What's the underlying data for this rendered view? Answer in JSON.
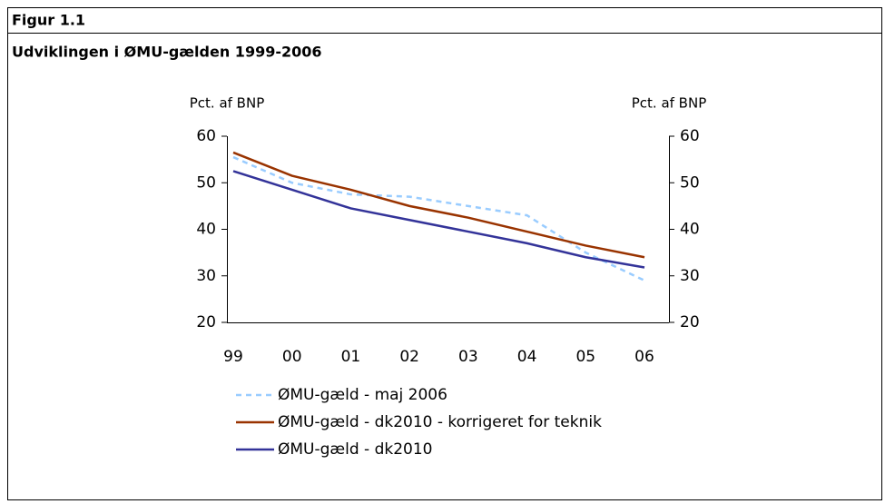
{
  "figure_label": "Figur 1.1",
  "chart_data": {
    "type": "line",
    "title": "Udviklingen i ØMU-gælden 1999-2006",
    "y_label": "Pct. af BNP",
    "y2_label": "Pct. af BNP",
    "categories": [
      "99",
      "00",
      "01",
      "02",
      "03",
      "04",
      "05",
      "06"
    ],
    "series": [
      {
        "name": "ØMU-gæld - maj 2006",
        "color": "#99ccff",
        "dash": true,
        "values": [
          55.5,
          50,
          47.5,
          47,
          45,
          43,
          35,
          29
        ]
      },
      {
        "name": "ØMU-gæld - dk2010 - korrigeret for teknik",
        "color": "#993300",
        "dash": false,
        "values": [
          56.5,
          51.5,
          48.5,
          45,
          42.5,
          39.5,
          36.5,
          34
        ]
      },
      {
        "name": "ØMU-gæld - dk2010",
        "color": "#333399",
        "dash": false,
        "values": [
          52.5,
          48.5,
          44.5,
          42,
          39.5,
          37,
          34,
          31.8
        ]
      }
    ],
    "ylim": [
      20,
      60
    ],
    "yticks": [
      20,
      30,
      40,
      50,
      60
    ],
    "y2lim": [
      20,
      60
    ],
    "y2ticks": [
      20,
      30,
      40,
      50,
      60
    ]
  }
}
